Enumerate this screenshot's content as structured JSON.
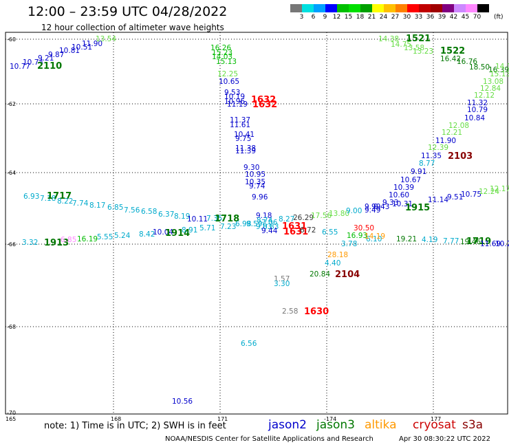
{
  "header": {
    "title": "12:00 – 23:59 UTC 04/28/2022",
    "subtitle": "12 hour collection of altimeter wave heights"
  },
  "colorbar": {
    "colors": [
      "#777777",
      "#00e0e0",
      "#00a0ff",
      "#0000ff",
      "#00c000",
      "#00e000",
      "#00a000",
      "#ffff00",
      "#ffc000",
      "#ff8000",
      "#ff0000",
      "#c00000",
      "#a00000",
      "#800080",
      "#cc88ff",
      "#ff88ff",
      "#000000"
    ],
    "ticks": [
      "3",
      "6",
      "9",
      "12",
      "15",
      "18",
      "21",
      "24",
      "27",
      "30",
      "33",
      "36",
      "39",
      "42",
      "45",
      "70"
    ],
    "unit": "(ft)"
  },
  "map": {
    "lat_labels": [
      "-60",
      "-62",
      "-64",
      "-66",
      "-68",
      "-70"
    ],
    "lon_labels": [
      "165",
      "168",
      "171",
      "-174",
      "177"
    ],
    "colors": {
      "c1": "#0000cc",
      "c2": "#00aacc",
      "c3": "#00bb00",
      "c4": "#007700",
      "c5": "#66dd44",
      "c6": "#ff9900",
      "c7": "#ff0000",
      "c8": "#880000",
      "c9": "#777777",
      "c10": "#ff88ff",
      "c11": "#333333",
      "c12": "#ee2222"
    },
    "labels": [
      {
        "t": "10.77",
        "c": "c1"
      },
      {
        "t": "10.74",
        "c": "c1"
      },
      {
        "t": "9.21",
        "c": "c1"
      },
      {
        "t": "9.87",
        "c": "c1"
      },
      {
        "t": "10.81",
        "c": "c1"
      },
      {
        "t": "10.51",
        "c": "c1"
      },
      {
        "t": "11.90",
        "c": "c1"
      },
      {
        "t": "13.54",
        "c": "c5"
      },
      {
        "t": "2110",
        "c": "c4"
      },
      {
        "t": "16.26",
        "c": "c3"
      },
      {
        "t": "15.23",
        "c": "c3"
      },
      {
        "t": "14.03",
        "c": "c3"
      },
      {
        "t": "15.13",
        "c": "c3"
      },
      {
        "t": "12.25",
        "c": "c5"
      },
      {
        "t": "10.65",
        "c": "c1"
      },
      {
        "t": "9.53",
        "c": "c1"
      },
      {
        "t": "10.19",
        "c": "c1"
      },
      {
        "t": "10.96",
        "c": "c1"
      },
      {
        "t": "11.19",
        "c": "c1"
      },
      {
        "t": "1632",
        "c": "c7"
      },
      {
        "t": "1632",
        "c": "c7"
      },
      {
        "t": "11.37",
        "c": "c1"
      },
      {
        "t": "11.61",
        "c": "c1"
      },
      {
        "t": "10.41",
        "c": "c1"
      },
      {
        "t": "9.75",
        "c": "c1"
      },
      {
        "t": "11.38",
        "c": "c1"
      },
      {
        "t": "11.39",
        "c": "c1"
      },
      {
        "t": "9.30",
        "c": "c1"
      },
      {
        "t": "10.95",
        "c": "c1"
      },
      {
        "t": "10.35",
        "c": "c1"
      },
      {
        "t": "9.74",
        "c": "c1"
      },
      {
        "t": "9.96",
        "c": "c1"
      },
      {
        "t": "14.38",
        "c": "c5"
      },
      {
        "t": "1521",
        "c": "c4"
      },
      {
        "t": "14.75",
        "c": "c5"
      },
      {
        "t": "13.58",
        "c": "c5"
      },
      {
        "t": "13.23",
        "c": "c5"
      },
      {
        "t": "1522",
        "c": "c4"
      },
      {
        "t": "16.42",
        "c": "c4"
      },
      {
        "t": "16.76",
        "c": "c4"
      },
      {
        "t": "18.50",
        "c": "c4"
      },
      {
        "t": "16.39",
        "c": "c4"
      },
      {
        "t": "14.1",
        "c": "c5"
      },
      {
        "t": "15.13",
        "c": "c5"
      },
      {
        "t": "13.08",
        "c": "c5"
      },
      {
        "t": "12.84",
        "c": "c5"
      },
      {
        "t": "12.12",
        "c": "c5"
      },
      {
        "t": "11.32",
        "c": "c1"
      },
      {
        "t": "10.79",
        "c": "c1"
      },
      {
        "t": "10.84",
        "c": "c1"
      },
      {
        "t": "12.08",
        "c": "c5"
      },
      {
        "t": "12.21",
        "c": "c5"
      },
      {
        "t": "11.90",
        "c": "c1"
      },
      {
        "t": "12.39",
        "c": "c5"
      },
      {
        "t": "2103",
        "c": "c8"
      },
      {
        "t": "11.35",
        "c": "c1"
      },
      {
        "t": "8.77",
        "c": "c2"
      },
      {
        "t": "9.91",
        "c": "c1"
      },
      {
        "t": "10.67",
        "c": "c1"
      },
      {
        "t": "10.39",
        "c": "c1"
      },
      {
        "t": "10.60",
        "c": "c1"
      },
      {
        "t": "9.33",
        "c": "c1"
      },
      {
        "t": "10.31",
        "c": "c1"
      },
      {
        "t": "9.43",
        "c": "c1"
      },
      {
        "t": "9.49",
        "c": "c1"
      },
      {
        "t": "9.99",
        "c": "c1"
      },
      {
        "t": "1915",
        "c": "c4"
      },
      {
        "t": "11.14",
        "c": "c1"
      },
      {
        "t": "9.51",
        "c": "c1"
      },
      {
        "t": "10.75",
        "c": "c1"
      },
      {
        "t": "12.24",
        "c": "c5"
      },
      {
        "t": "12.17",
        "c": "c5"
      },
      {
        "t": "6.93",
        "c": "c2"
      },
      {
        "t": "7.18",
        "c": "c2"
      },
      {
        "t": "1717",
        "c": "c4"
      },
      {
        "t": "8.22",
        "c": "c2"
      },
      {
        "t": "7.74",
        "c": "c2"
      },
      {
        "t": "8.17",
        "c": "c2"
      },
      {
        "t": "6.85",
        "c": "c2"
      },
      {
        "t": "7.56",
        "c": "c2"
      },
      {
        "t": "6.58",
        "c": "c2"
      },
      {
        "t": "6.37",
        "c": "c2"
      },
      {
        "t": "8.19",
        "c": "c2"
      },
      {
        "t": "10.11",
        "c": "c1"
      },
      {
        "t": "7.35",
        "c": "c2"
      },
      {
        "t": "1718",
        "c": "c4"
      },
      {
        "t": "9.18",
        "c": "c1"
      },
      {
        "t": "8.74",
        "c": "c2"
      },
      {
        "t": "7.06",
        "c": "c2"
      },
      {
        "t": "8.27",
        "c": "c2"
      },
      {
        "t": "26.29",
        "c": "c11"
      },
      {
        "t": "17.56",
        "c": "c5"
      },
      {
        "t": "13.80",
        "c": "c5"
      },
      {
        "t": "9.00",
        "c": "c2"
      },
      {
        "t": "5.71",
        "c": "c2"
      },
      {
        "t": "7.23",
        "c": "c2"
      },
      {
        "t": "6.98",
        "c": "c2"
      },
      {
        "t": "9.59",
        "c": "c2"
      },
      {
        "t": "9.03",
        "c": "c2"
      },
      {
        "t": "8.83",
        "c": "c2"
      },
      {
        "t": "9.44",
        "c": "c1"
      },
      {
        "t": "1631",
        "c": "c7"
      },
      {
        "t": "1631",
        "c": "c7"
      },
      {
        "t": "6.72",
        "c": "c11"
      },
      {
        "t": "3.32",
        "c": "c2"
      },
      {
        "t": "1913",
        "c": "c4"
      },
      {
        "t": "6.85",
        "c": "c10"
      },
      {
        "t": "16.19",
        "c": "c3"
      },
      {
        "t": "5.55",
        "c": "c2"
      },
      {
        "t": "5.24",
        "c": "c2"
      },
      {
        "t": "8.42",
        "c": "c2"
      },
      {
        "t": "10.04",
        "c": "c1"
      },
      {
        "t": "1914",
        "c": "c4"
      },
      {
        "t": "8.91",
        "c": "c2"
      },
      {
        "t": "6.55",
        "c": "c2"
      },
      {
        "t": "30.50",
        "c": "c7"
      },
      {
        "t": "6.10",
        "c": "c2"
      },
      {
        "t": "16.93",
        "c": "c3"
      },
      {
        "t": "14.19",
        "c": "c6"
      },
      {
        "t": "3.78",
        "c": "c2"
      },
      {
        "t": "19.21",
        "c": "c4"
      },
      {
        "t": "4.19",
        "c": "c2"
      },
      {
        "t": "7.77",
        "c": "c2"
      },
      {
        "t": "19.46",
        "c": "c4"
      },
      {
        "t": "1719",
        "c": "c4"
      },
      {
        "t": "11.69",
        "c": "c1"
      },
      {
        "t": "10.2",
        "c": "c1"
      },
      {
        "t": "28.18",
        "c": "c6"
      },
      {
        "t": "4.40",
        "c": "c2"
      },
      {
        "t": "20.84",
        "c": "c4"
      },
      {
        "t": "2104",
        "c": "c8"
      },
      {
        "t": "1.57",
        "c": "c9"
      },
      {
        "t": "3.30",
        "c": "c2"
      },
      {
        "t": "2.58",
        "c": "c9"
      },
      {
        "t": "1630",
        "c": "c7"
      },
      {
        "t": "6.56",
        "c": "c2"
      },
      {
        "t": "10.56",
        "c": "c1"
      }
    ]
  },
  "footer": {
    "note": "note:  1) Time is in UTC;  2) SWH is in feet",
    "legend": [
      {
        "label": "jason2",
        "color": "#0000cc"
      },
      {
        "label": "jason3",
        "color": "#007700"
      },
      {
        "label": "altika",
        "color": "#ff9900"
      },
      {
        "label": "cryosat",
        "color": "#cc0000"
      },
      {
        "label": "s3a",
        "color": "#880000"
      }
    ],
    "credit": "NOAA/NESDIS Center for Satellite Applications and Research",
    "date": "Apr 30 08:30:22 UTC 2022"
  }
}
